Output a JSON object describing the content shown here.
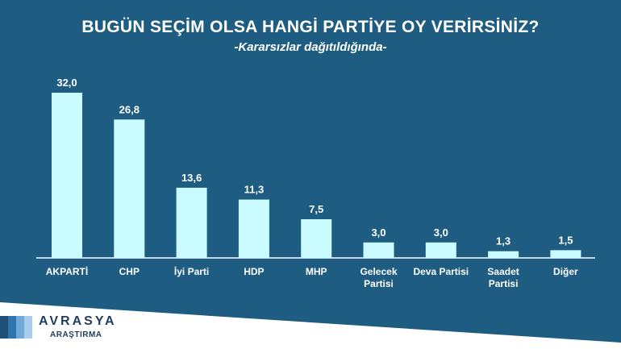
{
  "chart_data": {
    "type": "bar",
    "title": "BUGÜN SEÇİM OLSA HANGİ PARTİYE OY VERİRSİNİZ?",
    "subtitle": "-Kararsızlar dağıtıldığında-",
    "categories": [
      [
        "AKPARTİ"
      ],
      [
        "CHP"
      ],
      [
        "İyi Parti"
      ],
      [
        "HDP"
      ],
      [
        "MHP"
      ],
      [
        "Gelecek",
        "Partisi"
      ],
      [
        "Deva Partisi"
      ],
      [
        "Saadet",
        "Partisi"
      ],
      [
        "Diğer"
      ]
    ],
    "values": [
      32.0,
      26.8,
      13.6,
      11.3,
      7.5,
      3.0,
      3.0,
      1.3,
      1.5
    ],
    "value_labels": [
      "32,0",
      "26,8",
      "13,6",
      "11,3",
      "7,5",
      "3,0",
      "3,0",
      "1,3",
      "1,5"
    ],
    "ylim": [
      0,
      32
    ],
    "grid": false,
    "colors": {
      "background": "#1f5c82",
      "bar": "#c9fbff",
      "text": "#ffffff",
      "axis": "#ffffff"
    }
  },
  "logo": {
    "name": "AVRASYA",
    "sub": "ARAŞTIRMA",
    "bar_colors": [
      "#1f4f78",
      "#2f74ad",
      "#6ea9d8",
      "#a9cdec"
    ]
  }
}
